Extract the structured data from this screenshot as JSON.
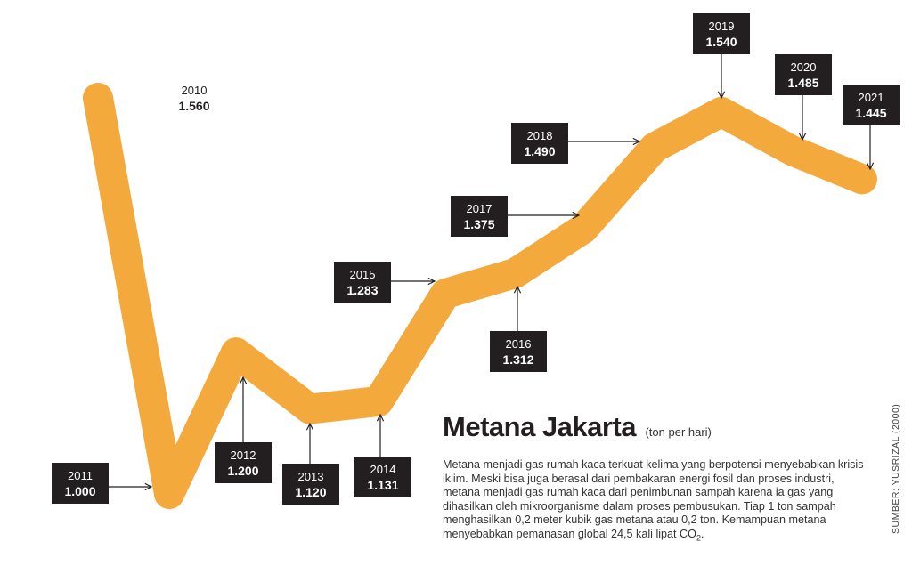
{
  "chart_data": {
    "type": "line",
    "title": "Metana Jakarta",
    "unit": "(ton per hari)",
    "x": [
      "2010",
      "2011",
      "2012",
      "2013",
      "2014",
      "2015",
      "2016",
      "2017",
      "2018",
      "2019",
      "2020",
      "2021"
    ],
    "values": [
      1560,
      1000,
      1200,
      1120,
      1131,
      1283,
      1312,
      1375,
      1490,
      1540,
      1485,
      1445
    ],
    "value_labels": [
      "1.560",
      "1.000",
      "1.200",
      "1.120",
      "1.131",
      "1.283",
      "1.312",
      "1.375",
      "1.490",
      "1.540",
      "1.485",
      "1.445"
    ],
    "line_color": "#f4a93c",
    "label_box_color": "#231f20",
    "ylim": [
      960,
      1600
    ]
  },
  "description": "Metana menjadi gas rumah kaca terkuat kelima yang berpotensi menyebabkan krisis iklim. Meski bisa juga berasal dari pembakaran energi fosil dan proses industri, metana menjadi gas rumah kaca dari penimbunan sampah karena ia gas yang dihasilkan oleh mikroorganisme dalam proses pembusukan. Tiap 1 ton sampah menghasilkan 0,2 meter kubik gas metana atau 0,2 ton. Kemampuan metana menyebabkan pemanasan global 24,5 kali lipat CO",
  "description_subscript": "2",
  "description_end": ".",
  "source": "SUMBER: YUSRIZAL (2000)"
}
